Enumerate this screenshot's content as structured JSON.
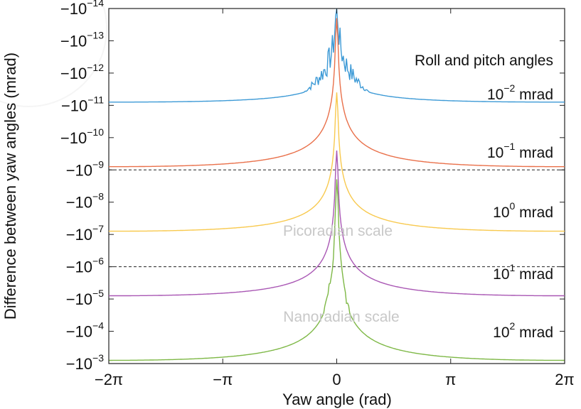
{
  "chart_data": {
    "type": "line",
    "xlabel": "Yaw angle (rad)",
    "ylabel": "Difference between yaw angles (mrad)",
    "xlim": [
      -6.283,
      6.283
    ],
    "ylim_exponent": [
      -14,
      -3
    ],
    "y_scale": "log (negative values)",
    "grid": false,
    "x_ticks": [
      "−2π",
      "−π",
      "0",
      "π",
      "2π"
    ],
    "y_ticks": [
      {
        "base": "−10",
        "exp": "−14"
      },
      {
        "base": "−10",
        "exp": "−13"
      },
      {
        "base": "−10",
        "exp": "−12"
      },
      {
        "base": "−10",
        "exp": "−11"
      },
      {
        "base": "−10",
        "exp": "−10"
      },
      {
        "base": "−10",
        "exp": "−9"
      },
      {
        "base": "−10",
        "exp": "−8"
      },
      {
        "base": "−10",
        "exp": "−7"
      },
      {
        "base": "−10",
        "exp": "−6"
      },
      {
        "base": "−10",
        "exp": "−5"
      },
      {
        "base": "−10",
        "exp": "−4"
      },
      {
        "base": "−10",
        "exp": "−3"
      }
    ],
    "legend_title": "Roll and pitch angles",
    "series": [
      {
        "name_base": "10",
        "name_exp": "−2",
        "name_unit": "mrad",
        "color": "#3d9ad6",
        "edge_exponent": -11.1,
        "center_exponent": -13.5
      },
      {
        "name_base": "10",
        "name_exp": "−1",
        "name_unit": "mrad",
        "color": "#e9704a",
        "edge_exponent": -9.1,
        "center_exponent": -13.7
      },
      {
        "name_base": "10",
        "name_exp": "0",
        "name_unit": "mrad",
        "color": "#f8c94e",
        "edge_exponent": -7.1,
        "center_exponent": -11.4
      },
      {
        "name_base": "10",
        "name_exp": "1",
        "name_unit": "mrad",
        "color": "#a957b4",
        "edge_exponent": -5.1,
        "center_exponent": -9.6
      },
      {
        "name_base": "10",
        "name_exp": "2",
        "name_unit": "mrad",
        "color": "#7eb846",
        "edge_exponent": -3.1,
        "center_exponent": -8.6
      }
    ],
    "reference_lines": [
      {
        "exponent": -9,
        "style": "dashed"
      },
      {
        "exponent": -6,
        "style": "dashed"
      },
      {
        "exponent": -3,
        "style": "dashed"
      }
    ],
    "annotations": {
      "picoradian": "Picoradian scale",
      "nanoradian": "Nanoradian scale"
    }
  }
}
